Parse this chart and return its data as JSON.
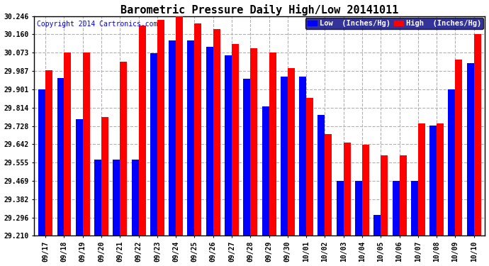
{
  "title": "Barometric Pressure Daily High/Low 20141011",
  "copyright": "Copyright 2014 Cartronics.com",
  "legend_low": "Low  (Inches/Hg)",
  "legend_high": "High  (Inches/Hg)",
  "dates": [
    "09/17",
    "09/18",
    "09/19",
    "09/20",
    "09/21",
    "09/22",
    "09/23",
    "09/24",
    "09/25",
    "09/26",
    "09/27",
    "09/28",
    "09/29",
    "09/30",
    "10/01",
    "10/02",
    "10/03",
    "10/04",
    "10/05",
    "10/06",
    "10/07",
    "10/08",
    "10/09",
    "10/10"
  ],
  "low": [
    29.9,
    29.955,
    29.76,
    29.57,
    29.57,
    29.57,
    30.07,
    30.13,
    30.13,
    30.1,
    30.06,
    29.95,
    29.82,
    29.96,
    29.96,
    29.78,
    29.47,
    29.47,
    29.31,
    29.47,
    29.47,
    29.73,
    29.9,
    30.025
  ],
  "high": [
    29.99,
    30.075,
    30.075,
    29.77,
    30.03,
    30.2,
    30.23,
    30.26,
    30.21,
    30.185,
    30.115,
    30.095,
    30.075,
    30.0,
    29.86,
    29.69,
    29.65,
    29.64,
    29.59,
    29.59,
    29.74,
    29.74,
    30.04,
    30.16
  ],
  "ymin": 29.21,
  "ymax": 30.246,
  "yticks": [
    29.21,
    29.296,
    29.382,
    29.469,
    29.555,
    29.642,
    29.728,
    29.814,
    29.901,
    29.987,
    30.073,
    30.16,
    30.246
  ],
  "color_low": "#0000ff",
  "color_high": "#ff0000",
  "background_color": "#ffffff",
  "bar_width": 0.38,
  "title_fontsize": 11,
  "tick_fontsize": 7,
  "legend_fontsize": 7.5,
  "copyright_fontsize": 7
}
